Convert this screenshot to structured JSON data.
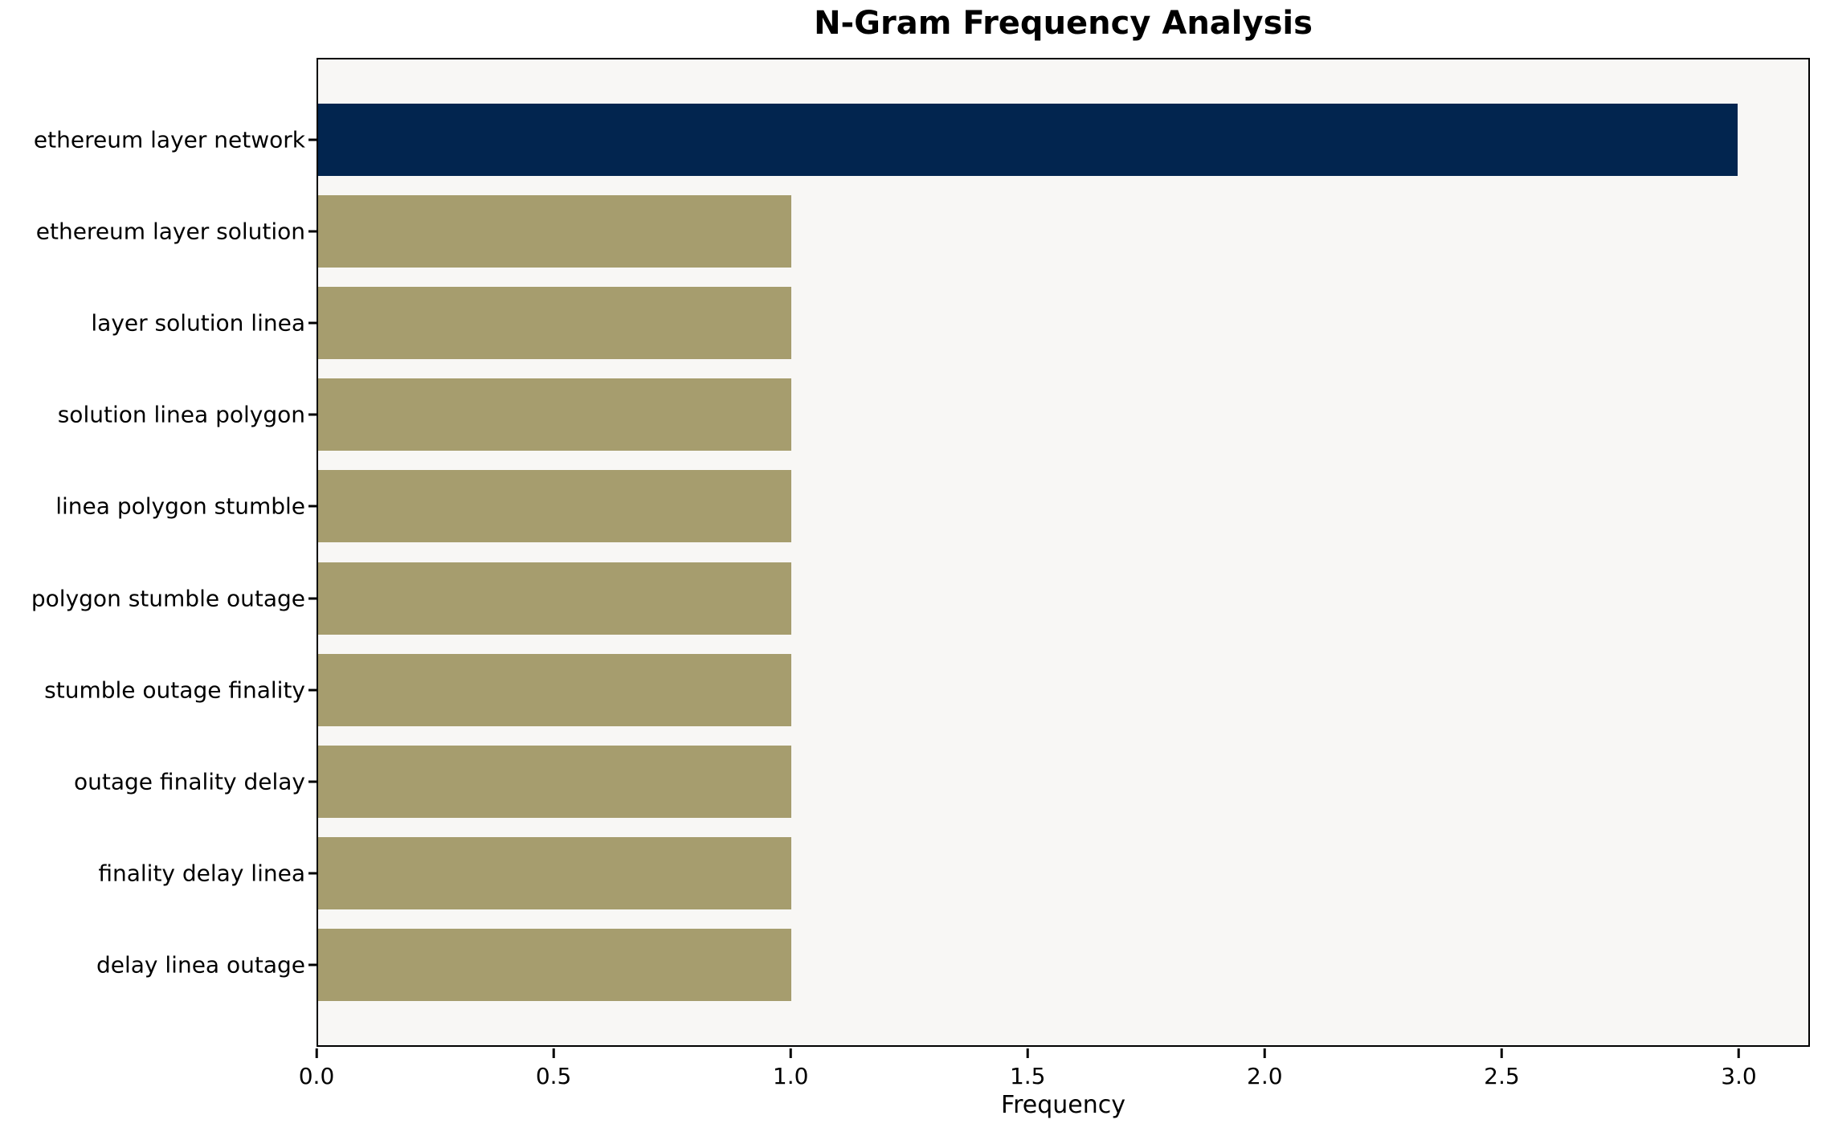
{
  "chart_data": {
    "type": "bar",
    "orientation": "horizontal",
    "title": "N-Gram Frequency Analysis",
    "xlabel": "Frequency",
    "ylabel": "",
    "categories": [
      "ethereum layer network",
      "ethereum layer solution",
      "layer solution linea",
      "solution linea polygon",
      "linea polygon stumble",
      "polygon stumble outage",
      "stumble outage finality",
      "outage finality delay",
      "finality delay linea",
      "delay linea outage"
    ],
    "values": [
      3,
      1,
      1,
      1,
      1,
      1,
      1,
      1,
      1,
      1
    ],
    "bar_colors": [
      "#02254f",
      "#a69d6e",
      "#a69d6e",
      "#a69d6e",
      "#a69d6e",
      "#a69d6e",
      "#a69d6e",
      "#a69d6e",
      "#a69d6e",
      "#a69d6e"
    ],
    "xlim": [
      0,
      3.15
    ],
    "x_tick_labels": [
      "0.0",
      "0.5",
      "1.0",
      "1.5",
      "2.0",
      "2.5",
      "3.0"
    ],
    "grid": false,
    "legend": null,
    "plot_background": "#f8f7f5",
    "figure_background": "#ffffff",
    "highlight_color": "#02254f",
    "default_bar_color": "#a69d6e"
  }
}
